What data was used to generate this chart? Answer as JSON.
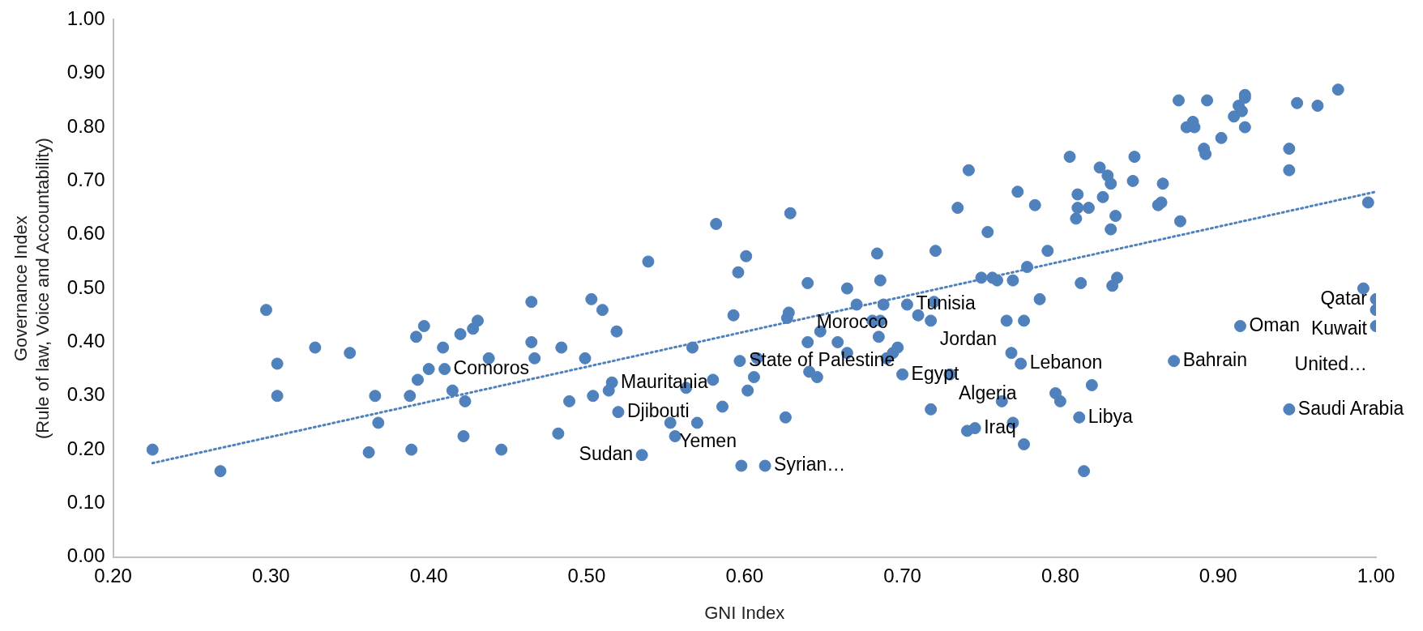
{
  "chart_data": {
    "type": "scatter",
    "xlabel": "GNI Index",
    "ylabel": "Governance Index\n(Rule of law, Voice and Accountability)",
    "xlim": [
      0.2,
      1.0
    ],
    "ylim": [
      0,
      1.0
    ],
    "xticks": [
      {
        "value": 0.2,
        "label": "0.20"
      },
      {
        "value": 0.3,
        "label": "0.30"
      },
      {
        "value": 0.4,
        "label": "0.40"
      },
      {
        "value": 0.5,
        "label": "0.50"
      },
      {
        "value": 0.6,
        "label": "0.60"
      },
      {
        "value": 0.7,
        "label": "0.70"
      },
      {
        "value": 0.8,
        "label": "0.80"
      },
      {
        "value": 0.9,
        "label": "0.90"
      },
      {
        "value": 1.0,
        "label": "1.00"
      }
    ],
    "yticks": [
      {
        "value": 0,
        "label": "0.00"
      },
      {
        "value": 0.1,
        "label": "0.10"
      },
      {
        "value": 0.2,
        "label": "0.20"
      },
      {
        "value": 0.3,
        "label": "0.30"
      },
      {
        "value": 0.4,
        "label": "0.40"
      },
      {
        "value": 0.5,
        "label": "0.50"
      },
      {
        "value": 0.6,
        "label": "0.60"
      },
      {
        "value": 0.7,
        "label": "0.70"
      },
      {
        "value": 0.8,
        "label": "0.80"
      },
      {
        "value": 0.9,
        "label": "0.90"
      },
      {
        "value": 1.0,
        "label": "1.00"
      }
    ],
    "grid": false,
    "legend": false,
    "marker": "circle",
    "series": [
      {
        "color": "#4f81bd",
        "x": [
          0.225,
          0.268,
          0.297,
          0.304,
          0.304,
          0.328,
          0.35,
          0.362,
          0.366,
          0.368,
          0.388,
          0.389,
          0.392,
          0.393,
          0.397,
          0.4,
          0.409,
          0.41,
          0.415,
          0.42,
          0.422,
          0.423,
          0.428,
          0.431,
          0.438,
          0.446,
          0.465,
          0.465,
          0.467,
          0.482,
          0.484,
          0.489,
          0.499,
          0.503,
          0.504,
          0.51,
          0.514,
          0.516,
          0.519,
          0.52,
          0.535,
          0.539,
          0.553,
          0.556,
          0.563,
          0.567,
          0.57,
          0.58,
          0.582,
          0.586,
          0.593,
          0.596,
          0.597,
          0.598,
          0.601,
          0.602,
          0.606,
          0.608,
          0.613,
          0.626,
          0.627,
          0.628,
          0.629,
          0.64,
          0.64,
          0.641,
          0.646,
          0.648,
          0.659,
          0.665,
          0.665,
          0.671,
          0.681,
          0.684,
          0.685,
          0.686,
          0.686,
          0.688,
          0.69,
          0.694,
          0.697,
          0.7,
          0.703,
          0.71,
          0.718,
          0.718,
          0.72,
          0.721,
          0.73,
          0.735,
          0.741,
          0.742,
          0.746,
          0.75,
          0.754,
          0.757,
          0.76,
          0.763,
          0.766,
          0.769,
          0.77,
          0.77,
          0.773,
          0.775,
          0.777,
          0.777,
          0.779,
          0.784,
          0.787,
          0.792,
          0.797,
          0.8,
          0.806,
          0.81,
          0.811,
          0.811,
          0.812,
          0.813,
          0.815,
          0.818,
          0.82,
          0.825,
          0.827,
          0.83,
          0.832,
          0.832,
          0.833,
          0.835,
          0.836,
          0.846,
          0.847,
          0.862,
          0.864,
          0.865,
          0.872,
          0.875,
          0.876,
          0.88,
          0.884,
          0.885,
          0.891,
          0.892,
          0.893,
          0.902,
          0.91,
          0.913,
          0.914,
          0.915,
          0.917,
          0.917,
          0.917,
          0.945,
          0.945,
          0.945,
          0.95,
          0.963,
          0.976,
          0.995,
          0.992,
          1.0,
          1.0,
          1.0
        ],
        "values": [
          0.2,
          0.16,
          0.46,
          0.36,
          0.3,
          0.39,
          0.38,
          0.195,
          0.3,
          0.25,
          0.3,
          0.2,
          0.41,
          0.33,
          0.43,
          0.35,
          0.39,
          0.35,
          0.31,
          0.415,
          0.225,
          0.29,
          0.425,
          0.44,
          0.37,
          0.2,
          0.475,
          0.4,
          0.37,
          0.23,
          0.39,
          0.29,
          0.37,
          0.48,
          0.3,
          0.46,
          0.31,
          0.325,
          0.42,
          0.27,
          0.19,
          0.55,
          0.25,
          0.225,
          0.315,
          0.39,
          0.25,
          0.33,
          0.62,
          0.28,
          0.45,
          0.53,
          0.365,
          0.17,
          0.56,
          0.31,
          0.335,
          0.37,
          0.17,
          0.26,
          0.445,
          0.455,
          0.64,
          0.51,
          0.4,
          0.345,
          0.335,
          0.42,
          0.4,
          0.5,
          0.38,
          0.47,
          0.44,
          0.565,
          0.41,
          0.44,
          0.515,
          0.47,
          0.37,
          0.38,
          0.39,
          0.34,
          0.47,
          0.45,
          0.44,
          0.275,
          0.475,
          0.57,
          0.34,
          0.65,
          0.235,
          0.72,
          0.24,
          0.52,
          0.605,
          0.52,
          0.515,
          0.29,
          0.44,
          0.38,
          0.515,
          0.25,
          0.68,
          0.36,
          0.21,
          0.44,
          0.54,
          0.655,
          0.48,
          0.57,
          0.305,
          0.29,
          0.745,
          0.63,
          0.65,
          0.675,
          0.26,
          0.51,
          0.16,
          0.65,
          0.32,
          0.725,
          0.67,
          0.71,
          0.695,
          0.61,
          0.505,
          0.635,
          0.52,
          0.7,
          0.745,
          0.655,
          0.66,
          0.695,
          0.365,
          0.85,
          0.625,
          0.8,
          0.81,
          0.8,
          0.76,
          0.75,
          0.85,
          0.78,
          0.82,
          0.84,
          0.43,
          0.83,
          0.86,
          0.855,
          0.8,
          0.76,
          0.72,
          0.275,
          0.845,
          0.84,
          0.87,
          0.66,
          0.5,
          0.48,
          0.46,
          0.43
        ]
      },
      {
        "type": "line",
        "color": "#4f81bd",
        "line_style": "dotted",
        "marker": "none",
        "x": [
          0.225,
          1.0
        ],
        "values": [
          0.175,
          0.68
        ]
      }
    ],
    "annotations": [
      {
        "text": "Comoros",
        "x": 0.41,
        "y": 0.35
      },
      {
        "text": "Mauritania",
        "x": 0.516,
        "y": 0.325
      },
      {
        "text": "Djibouti",
        "x": 0.52,
        "y": 0.27
      },
      {
        "text": "Yemen",
        "x": 0.553,
        "y": 0.25
      },
      {
        "text": "Sudan",
        "x": 0.535,
        "y": 0.19
      },
      {
        "text": "Syrian…",
        "x": 0.613,
        "y": 0.17
      },
      {
        "text": "State of Palestine",
        "x": 0.597,
        "y": 0.365
      },
      {
        "text": "Morocco",
        "x": 0.64,
        "y": 0.4
      },
      {
        "text": "Egypt",
        "x": 0.7,
        "y": 0.34
      },
      {
        "text": "Tunisia",
        "x": 0.703,
        "y": 0.47
      },
      {
        "text": "Jordan",
        "x": 0.718,
        "y": 0.44
      },
      {
        "text": "Algeria",
        "x": 0.73,
        "y": 0.34
      },
      {
        "text": "Lebanon",
        "x": 0.775,
        "y": 0.36
      },
      {
        "text": "Libya",
        "x": 0.812,
        "y": 0.26
      },
      {
        "text": "Iraq",
        "x": 0.746,
        "y": 0.24
      },
      {
        "text": "Bahrain",
        "x": 0.872,
        "y": 0.365
      },
      {
        "text": "Oman",
        "x": 0.914,
        "y": 0.43
      },
      {
        "text": "Qatar",
        "x": 1.0,
        "y": 0.48
      },
      {
        "text": "Kuwait",
        "x": 1.0,
        "y": 0.46
      },
      {
        "text": "United…",
        "x": 1.0,
        "y": 0.43
      },
      {
        "text": "Saudi Arabia",
        "x": 0.945,
        "y": 0.275
      }
    ]
  }
}
